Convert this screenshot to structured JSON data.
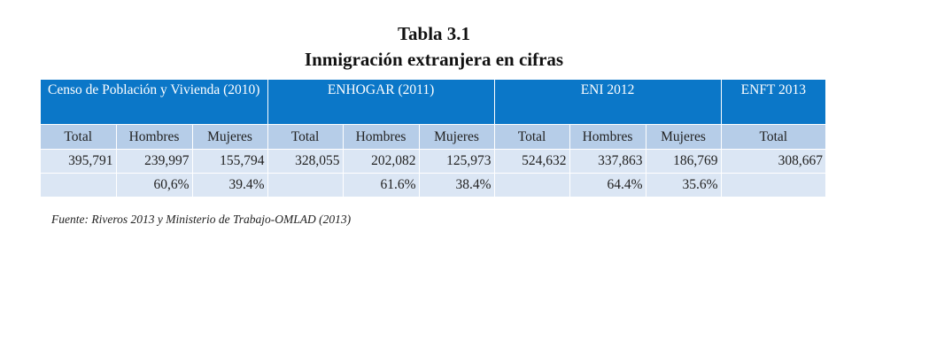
{
  "title": "Tabla 3.1",
  "subtitle": "Inmigración extranjera en cifras",
  "table": {
    "groups": [
      "Censo de Población y Vivienda (2010)",
      "ENHOGAR (2011)",
      "ENI 2012",
      "ENFT 2013"
    ],
    "columns": [
      "Total",
      "Hombres",
      "Mujeres",
      "Total",
      "Hombres",
      "Mujeres",
      "Total",
      "Hombres",
      "Mujeres",
      "Total"
    ],
    "rows": [
      [
        "395,791",
        "239,997",
        "155,794",
        "328,055",
        "202,082",
        "125,973",
        "524,632",
        "337,863",
        "186,769",
        "308,667"
      ],
      [
        "",
        "60,6%",
        "39.4%",
        "",
        "61.6%",
        "38.4%",
        "",
        "64.4%",
        "35.6%",
        ""
      ]
    ]
  },
  "source": "Fuente: Riveros 2013 y Ministerio de Trabajo-OMLAD (2013)"
}
